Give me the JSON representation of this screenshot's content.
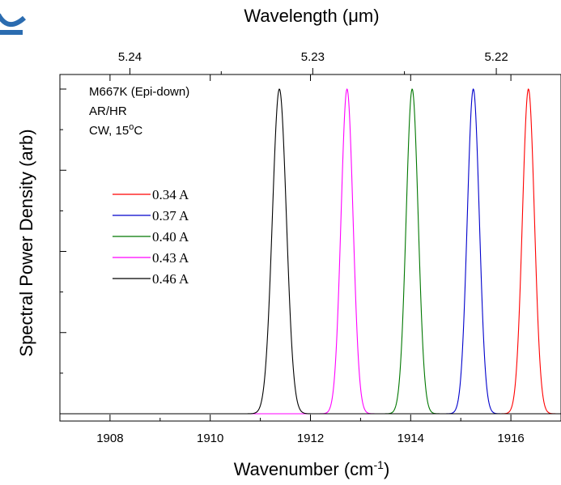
{
  "chart_data": {
    "type": "line",
    "xlabel": "Wavenumber (cm",
    "xlabel_sup": "-1",
    "xlabel_end": ")",
    "x2label_prefix": "Wavelength (",
    "x2label_mu": "μ",
    "x2label_suffix": "m)",
    "ylabel": "Spectral Power Density (arb)",
    "xlim": [
      1907,
      1917
    ],
    "ylim": [
      0,
      1.06
    ],
    "x_ticks": [
      1908,
      1910,
      1912,
      1914,
      1916
    ],
    "x_tick_labels": [
      "1908",
      "1910",
      "1912",
      "1914",
      "1916"
    ],
    "x2_ticks": [
      5.24,
      5.23,
      5.22
    ],
    "x2_tick_labels": [
      "5.24",
      "5.23",
      "5.22"
    ],
    "annotations": [
      "M667K (Epi-down)",
      "AR/HR"
    ],
    "annotation_cw_prefix": "CW, 15",
    "annotation_cw_sup": "o",
    "annotation_cw_suffix": "C",
    "legend_position": "middle-left",
    "series": [
      {
        "name": "0.34 A",
        "color": "#ff0000",
        "peak": 1916.35,
        "width": 0.12
      },
      {
        "name": "0.37 A",
        "color": "#0000cc",
        "peak": 1915.25,
        "width": 0.12
      },
      {
        "name": "0.40 A",
        "color": "#007700",
        "peak": 1914.03,
        "width": 0.12
      },
      {
        "name": "0.43 A",
        "color": "#ff00ff",
        "peak": 1912.73,
        "width": 0.12
      },
      {
        "name": "0.46 A",
        "color": "#000000",
        "peak": 1911.38,
        "width": 0.14
      }
    ]
  }
}
